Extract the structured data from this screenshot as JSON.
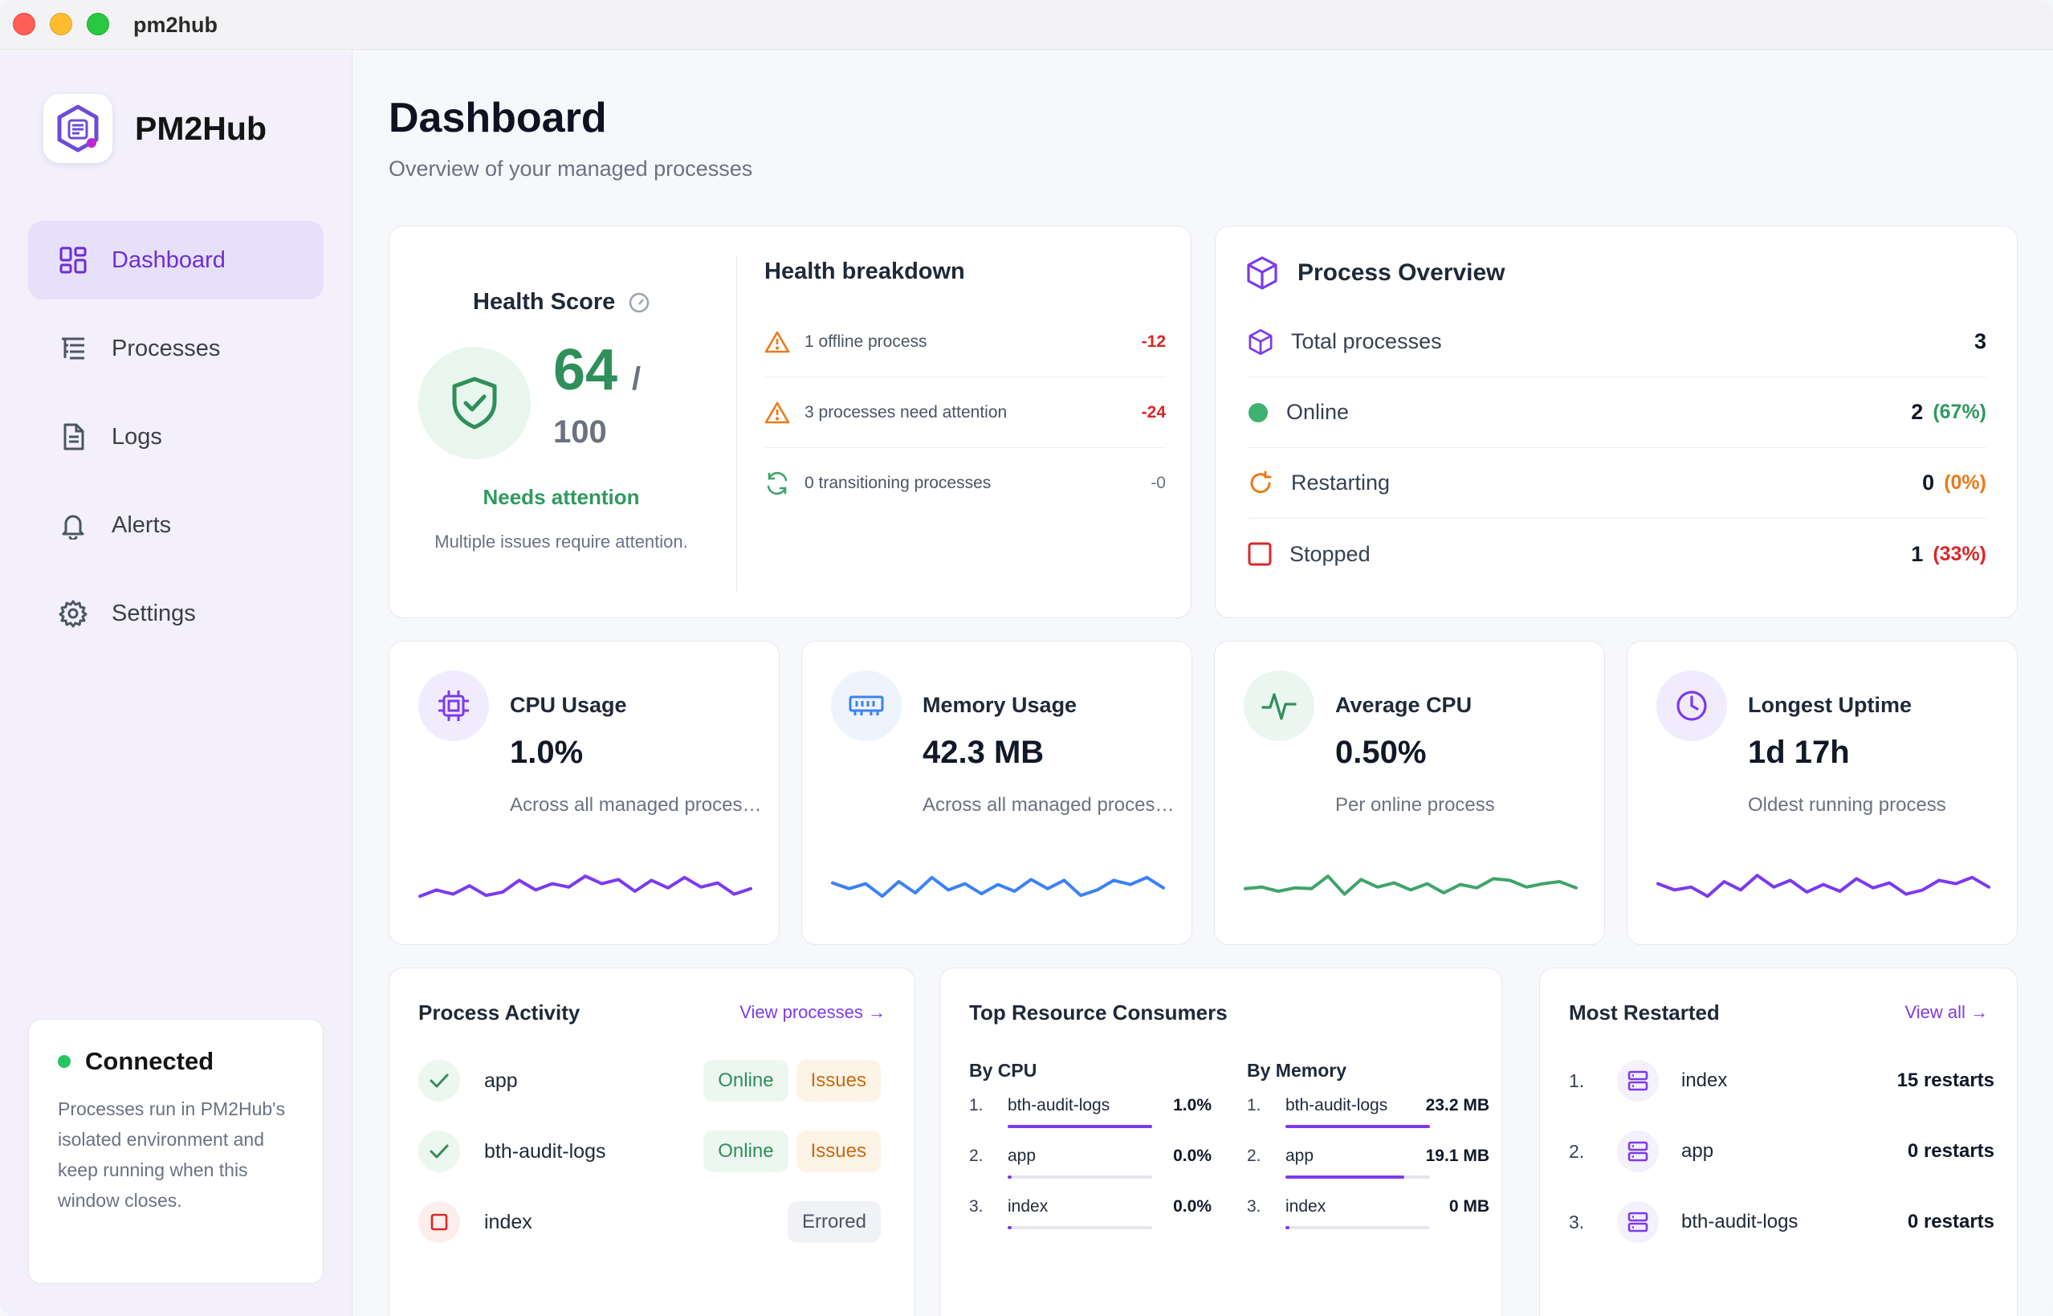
{
  "window": {
    "title": "pm2hub"
  },
  "sidebar": {
    "brand": "PM2Hub",
    "items": [
      {
        "label": "Dashboard",
        "icon": "dashboard-icon",
        "active": true
      },
      {
        "label": "Processes",
        "icon": "list-icon"
      },
      {
        "label": "Logs",
        "icon": "document-icon"
      },
      {
        "label": "Alerts",
        "icon": "bell-icon"
      },
      {
        "label": "Settings",
        "icon": "gear-icon"
      }
    ],
    "connection": {
      "title": "Connected",
      "text": "Processes run in PM2Hub's isolated environment and keep running when this window closes."
    }
  },
  "page": {
    "title": "Dashboard",
    "subtitle": "Overview of your managed processes"
  },
  "health": {
    "title": "Health Score",
    "score": "64",
    "slash": "/",
    "max": "100",
    "status": "Needs attention",
    "description": "Multiple issues require attention.",
    "breakdown_title": "Health breakdown",
    "breakdown": [
      {
        "label": "1 offline process",
        "value": "-12",
        "icon": "warning-icon",
        "color": "#dc2626"
      },
      {
        "label": "3 processes need attention",
        "value": "-24",
        "icon": "warning-icon",
        "color": "#dc2626"
      },
      {
        "label": "0 transitioning processes",
        "value": "-0",
        "icon": "refresh-icon",
        "color": "#6b7280"
      }
    ]
  },
  "overview": {
    "title": "Process Overview",
    "rows": [
      {
        "label": "Total processes",
        "value": "3",
        "pct": ""
      },
      {
        "label": "Online",
        "value": "2",
        "pct": "(67%)",
        "color": "#2f9a5d"
      },
      {
        "label": "Restarting",
        "value": "0",
        "pct": "(0%)",
        "color": "#ea7a1a"
      },
      {
        "label": "Stopped",
        "value": "1",
        "pct": "(33%)",
        "color": "#dc2626"
      }
    ]
  },
  "metrics": [
    {
      "title": "CPU Usage",
      "value": "1.0%",
      "subtitle": "Across all managed processes",
      "icon": "cpu-icon",
      "color": "#7c3aed",
      "spark": [
        0.4,
        0.55,
        0.45,
        0.65,
        0.42,
        0.5,
        0.78,
        0.55,
        0.7,
        0.62,
        0.88,
        0.7,
        0.8,
        0.52,
        0.78,
        0.6,
        0.85,
        0.62,
        0.72,
        0.45,
        0.58
      ]
    },
    {
      "title": "Memory Usage",
      "value": "42.3 MB",
      "subtitle": "Across all managed processes",
      "icon": "memory-icon",
      "color": "#3b82f6",
      "spark": [
        0.72,
        0.58,
        0.7,
        0.4,
        0.75,
        0.48,
        0.85,
        0.55,
        0.7,
        0.46,
        0.68,
        0.52,
        0.8,
        0.58,
        0.78,
        0.42,
        0.55,
        0.78,
        0.68,
        0.85,
        0.6
      ]
    },
    {
      "title": "Average CPU",
      "value": "0.50%",
      "subtitle": "Per online process",
      "icon": "activity-icon",
      "color": "#3fa46a",
      "spark": [
        0.58,
        0.62,
        0.52,
        0.6,
        0.58,
        0.88,
        0.45,
        0.8,
        0.62,
        0.72,
        0.55,
        0.7,
        0.48,
        0.68,
        0.6,
        0.82,
        0.78,
        0.62,
        0.7,
        0.75,
        0.6
      ]
    },
    {
      "title": "Longest Uptime",
      "value": "1d 17h",
      "subtitle": "Oldest running process",
      "icon": "clock-icon",
      "color": "#7c3aed",
      "spark": [
        0.7,
        0.55,
        0.62,
        0.4,
        0.75,
        0.55,
        0.9,
        0.62,
        0.78,
        0.5,
        0.68,
        0.52,
        0.82,
        0.6,
        0.72,
        0.45,
        0.55,
        0.78,
        0.7,
        0.85,
        0.62
      ]
    }
  ],
  "activity": {
    "title": "Process Activity",
    "link": "View processes →",
    "rows": [
      {
        "name": "app",
        "state": "ok",
        "badges": [
          "Online",
          "Issues"
        ]
      },
      {
        "name": "bth-audit-logs",
        "state": "ok",
        "badges": [
          "Online",
          "Issues"
        ]
      },
      {
        "name": "index",
        "state": "error",
        "badges": [
          "Errored"
        ]
      }
    ]
  },
  "consumers": {
    "title": "Top Resource Consumers",
    "by_cpu": {
      "heading": "By CPU",
      "rows": [
        {
          "rank": "1.",
          "name": "bth-audit-logs",
          "value": "1.0%",
          "fill": 1.0
        },
        {
          "rank": "2.",
          "name": "app",
          "value": "0.0%",
          "fill": 0.03
        },
        {
          "rank": "3.",
          "name": "index",
          "value": "0.0%",
          "fill": 0.03
        }
      ]
    },
    "by_memory": {
      "heading": "By Memory",
      "rows": [
        {
          "rank": "1.",
          "name": "bth-audit-logs",
          "value": "23.2 MB",
          "fill": 1.0
        },
        {
          "rank": "2.",
          "name": "app",
          "value": "19.1 MB",
          "fill": 0.82
        },
        {
          "rank": "3.",
          "name": "index",
          "value": "0 MB",
          "fill": 0.03
        }
      ]
    }
  },
  "restarted": {
    "title": "Most Restarted",
    "link": "View all →",
    "rows": [
      {
        "rank": "1.",
        "name": "index",
        "value": "15 restarts"
      },
      {
        "rank": "2.",
        "name": "app",
        "value": "0 restarts"
      },
      {
        "rank": "3.",
        "name": "bth-audit-logs",
        "value": "0 restarts"
      }
    ]
  }
}
